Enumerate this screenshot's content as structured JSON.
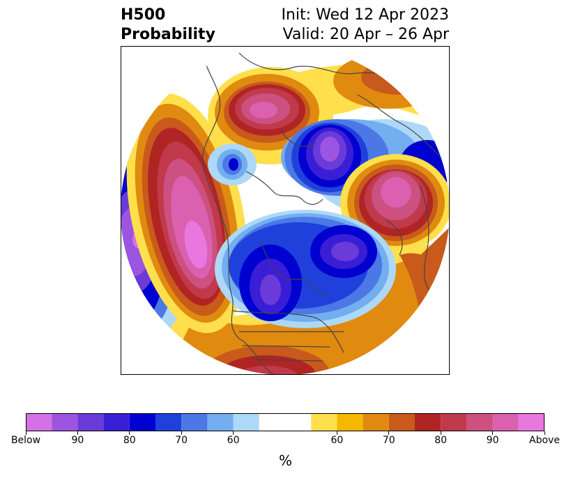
{
  "title": {
    "left_line1": "H500",
    "left_line2": "Probability",
    "right_line1": "Init: Wed 12 Apr 2023",
    "right_line2": "Valid: 20 Apr – 26 Apr"
  },
  "colorbar": {
    "colors": [
      "#d670e6",
      "#9b55e0",
      "#6a3bd9",
      "#3a1ed6",
      "#0000d0",
      "#2040dc",
      "#4c78e6",
      "#72aef0",
      "#aed8f8",
      "#ffffff",
      "#ffe04c",
      "#f4b800",
      "#e08a10",
      "#c85a1c",
      "#b02424",
      "#c03a4c",
      "#cc5080",
      "#dc60b0",
      "#e878e0"
    ],
    "tick_labels": [
      "Below",
      "90",
      "80",
      "70",
      "60",
      "60",
      "70",
      "80",
      "90",
      "Above"
    ],
    "unit": "%"
  },
  "map": {
    "projection": "north-polar-stereographic",
    "colors": {
      "above_extreme": "#e878e0",
      "above_high": "#cc5080",
      "above_mid": "#b02424",
      "above_low": "#e08a10",
      "above_weak": "#ffe04c",
      "below_weak": "#aed8f8",
      "below_low": "#4c78e6",
      "below_mid": "#0000d0",
      "below_high": "#6a3bd9",
      "below_extreme": "#9b55e0",
      "coast": "#444444"
    }
  }
}
